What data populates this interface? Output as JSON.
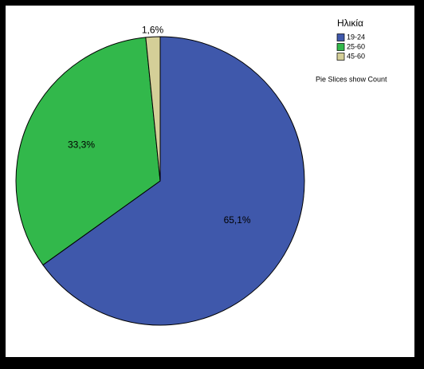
{
  "chart_data": {
    "type": "pie",
    "legend_title": "Ηλικία",
    "categories": [
      "19-24",
      "25-60",
      "45-60"
    ],
    "values": [
      65.1,
      33.3,
      1.6
    ],
    "value_labels": [
      "65,1%",
      "33,3%",
      "1,6%"
    ],
    "colors": [
      "#3f58ab",
      "#32b84b",
      "#d4cf98"
    ],
    "note": "Pie Slices show Count",
    "legend": "right"
  }
}
